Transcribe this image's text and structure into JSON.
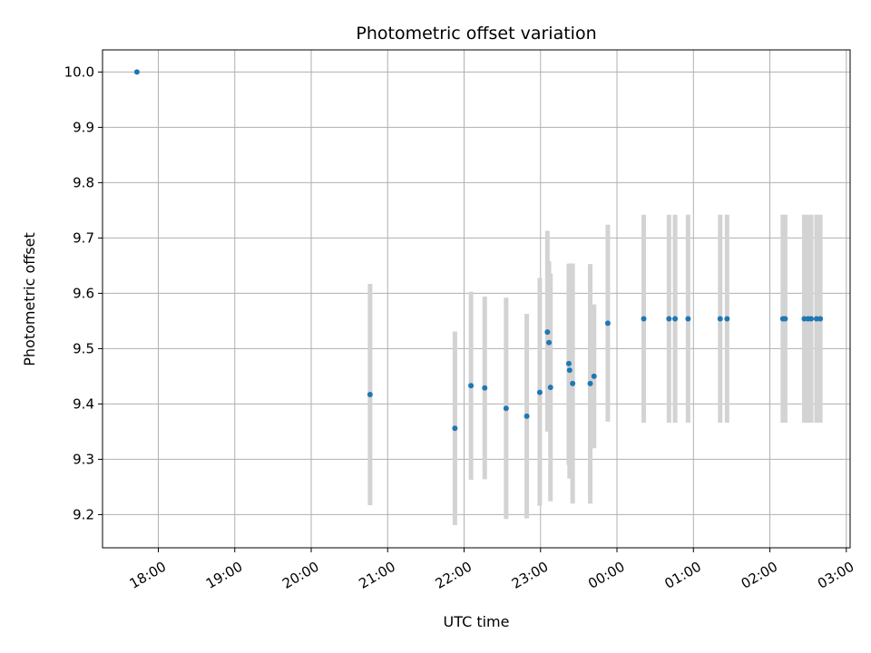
{
  "chart_data": {
    "type": "scatter",
    "title": "Photometric offset variation",
    "xlabel": "UTC time",
    "ylabel": "Photometric offset",
    "x_unit": "hours",
    "xlim": [
      17.27,
      27.05
    ],
    "ylim": [
      9.14,
      10.04
    ],
    "x_ticks": [
      {
        "value": 18,
        "label": "18:00"
      },
      {
        "value": 19,
        "label": "19:00"
      },
      {
        "value": 20,
        "label": "20:00"
      },
      {
        "value": 21,
        "label": "21:00"
      },
      {
        "value": 22,
        "label": "22:00"
      },
      {
        "value": 23,
        "label": "23:00"
      },
      {
        "value": 24,
        "label": "00:00"
      },
      {
        "value": 25,
        "label": "01:00"
      },
      {
        "value": 26,
        "label": "02:00"
      },
      {
        "value": 27,
        "label": "03:00"
      }
    ],
    "y_ticks": [
      "9.2",
      "9.3",
      "9.4",
      "9.5",
      "9.6",
      "9.7",
      "9.8",
      "9.9",
      "10.0"
    ],
    "grid": true,
    "marker_color": "#1f77b4",
    "errorbar_color": "#d3d3d3",
    "points": [
      {
        "x": 17.72,
        "y": 10.0,
        "lo": null,
        "hi": null
      },
      {
        "x": 20.77,
        "y": 9.417,
        "lo": 9.217,
        "hi": 9.617
      },
      {
        "x": 21.88,
        "y": 9.356,
        "lo": 9.181,
        "hi": 9.531
      },
      {
        "x": 22.09,
        "y": 9.433,
        "lo": 9.263,
        "hi": 9.603
      },
      {
        "x": 22.27,
        "y": 9.429,
        "lo": 9.264,
        "hi": 9.594
      },
      {
        "x": 22.55,
        "y": 9.392,
        "lo": 9.192,
        "hi": 9.592
      },
      {
        "x": 22.82,
        "y": 9.378,
        "lo": 9.193,
        "hi": 9.563
      },
      {
        "x": 22.99,
        "y": 9.421,
        "lo": 9.216,
        "hi": 9.628
      },
      {
        "x": 23.09,
        "y": 9.53,
        "lo": 9.35,
        "hi": 9.713
      },
      {
        "x": 23.11,
        "y": 9.511,
        "lo": 9.36,
        "hi": 9.658
      },
      {
        "x": 23.13,
        "y": 9.43,
        "lo": 9.224,
        "hi": 9.636
      },
      {
        "x": 23.37,
        "y": 9.473,
        "lo": 9.29,
        "hi": 9.653
      },
      {
        "x": 23.38,
        "y": 9.461,
        "lo": 9.265,
        "hi": 9.654
      },
      {
        "x": 23.42,
        "y": 9.437,
        "lo": 9.22,
        "hi": 9.654
      },
      {
        "x": 23.65,
        "y": 9.437,
        "lo": 9.22,
        "hi": 9.653
      },
      {
        "x": 23.7,
        "y": 9.45,
        "lo": 9.32,
        "hi": 9.58
      },
      {
        "x": 23.88,
        "y": 9.546,
        "lo": 9.368,
        "hi": 9.724
      },
      {
        "x": 24.35,
        "y": 9.554,
        "lo": 9.366,
        "hi": 9.742
      },
      {
        "x": 24.68,
        "y": 9.554,
        "lo": 9.366,
        "hi": 9.742
      },
      {
        "x": 24.76,
        "y": 9.554,
        "lo": 9.366,
        "hi": 9.742
      },
      {
        "x": 24.93,
        "y": 9.554,
        "lo": 9.366,
        "hi": 9.742
      },
      {
        "x": 25.35,
        "y": 9.554,
        "lo": 9.366,
        "hi": 9.742
      },
      {
        "x": 25.44,
        "y": 9.554,
        "lo": 9.366,
        "hi": 9.742
      },
      {
        "x": 26.17,
        "y": 9.554,
        "lo": 9.366,
        "hi": 9.742
      },
      {
        "x": 26.2,
        "y": 9.554,
        "lo": 9.366,
        "hi": 9.742
      },
      {
        "x": 26.45,
        "y": 9.554,
        "lo": 9.366,
        "hi": 9.742
      },
      {
        "x": 26.5,
        "y": 9.554,
        "lo": 9.366,
        "hi": 9.742
      },
      {
        "x": 26.54,
        "y": 9.554,
        "lo": 9.366,
        "hi": 9.742
      },
      {
        "x": 26.61,
        "y": 9.554,
        "lo": 9.366,
        "hi": 9.742
      },
      {
        "x": 26.66,
        "y": 9.554,
        "lo": 9.366,
        "hi": 9.742
      }
    ]
  }
}
